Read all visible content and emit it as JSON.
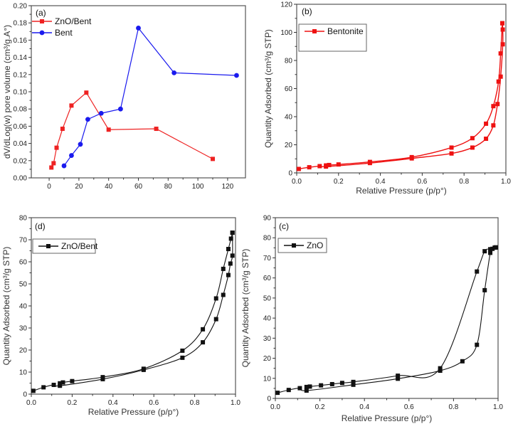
{
  "chart_data": [
    {
      "id": "a",
      "type": "line",
      "panel_label": "(a)",
      "title": "",
      "xlabel": "",
      "ylabel": "dV/dLog(w) pore volume (cm³/g.A°)",
      "xlim": [
        -12,
        132
      ],
      "ylim": [
        0,
        0.2
      ],
      "xticks": [
        0,
        20,
        40,
        60,
        80,
        100,
        120
      ],
      "xtick_labels": [
        "0",
        "20",
        "40",
        "60",
        "80",
        "100",
        "120"
      ],
      "yticks": [
        0,
        0.02,
        0.04,
        0.06,
        0.08,
        0.1,
        0.12,
        0.14,
        0.16,
        0.18,
        0.2
      ],
      "ytick_labels": [
        "0.00",
        "0.02",
        "0.04",
        "0.06",
        "0.08",
        "0.10",
        "0.12",
        "0.14",
        "0.16",
        "0.18",
        "0.20"
      ],
      "grid": false,
      "legend_position": "top-left",
      "series": [
        {
          "name": "ZnO/Bent",
          "color": "#ee2222",
          "marker": "square",
          "x": [
            1.5,
            3,
            5,
            9,
            15,
            25,
            40,
            72,
            110
          ],
          "y": [
            0.012,
            0.017,
            0.035,
            0.057,
            0.084,
            0.099,
            0.056,
            0.057,
            0.022
          ]
        },
        {
          "name": "Bent",
          "color": "#1a1aee",
          "marker": "circle",
          "x": [
            10,
            15,
            21,
            26,
            35,
            48,
            60,
            84,
            126
          ],
          "y": [
            0.014,
            0.026,
            0.039,
            0.068,
            0.075,
            0.08,
            0.174,
            0.122,
            0.119
          ]
        }
      ]
    },
    {
      "id": "b",
      "type": "line",
      "panel_label": "(b)",
      "title": "",
      "xlabel": "Relative Pressure (p/p°)",
      "ylabel": "Quantity Adsorbed (cm³/g STP)",
      "xlim": [
        0,
        1
      ],
      "ylim": [
        0,
        120
      ],
      "xticks": [
        0,
        0.2,
        0.4,
        0.6,
        0.8,
        1.0
      ],
      "xtick_labels": [
        "0.0",
        "0.2",
        "0.4",
        "0.6",
        "0.8",
        "1.0"
      ],
      "yticks": [
        0,
        20,
        40,
        60,
        80,
        100,
        120
      ],
      "ytick_labels": [
        "0",
        "20",
        "40",
        "60",
        "80",
        "100",
        "120"
      ],
      "grid": false,
      "legend_position": "top-left",
      "legend_boxed": true,
      "series": [
        {
          "name": "Bentonite",
          "branch": "adsorption",
          "color": "#ee1111",
          "marker": "square",
          "x": [
            0.01,
            0.06,
            0.11,
            0.14,
            0.35,
            0.55,
            0.74,
            0.84,
            0.905,
            0.94,
            0.96,
            0.975,
            0.985,
            0.985,
            0.983
          ],
          "y": [
            2.8,
            4.0,
            4.8,
            4.5,
            7.0,
            10.3,
            13.8,
            18.0,
            24.3,
            33.8,
            49.0,
            68.5,
            91.5,
            102.0,
            106.5
          ]
        },
        {
          "name": "Bentonite",
          "branch": "desorption",
          "color": "#ee1111",
          "marker": "square",
          "x": [
            0.983,
            0.975,
            0.965,
            0.94,
            0.905,
            0.84,
            0.74,
            0.55,
            0.35,
            0.2,
            0.155,
            0.14
          ],
          "y": [
            106.5,
            85.0,
            65.0,
            47.5,
            35.0,
            24.7,
            18.0,
            11.2,
            7.8,
            6.0,
            5.6,
            5.3
          ]
        }
      ]
    },
    {
      "id": "d",
      "type": "line",
      "panel_label": "(d)",
      "title": "",
      "xlabel": "Relative Pressure (p/p°)",
      "ylabel": "Quantity Adsorbed (cm³/g STP)",
      "xlim": [
        0,
        1
      ],
      "ylim": [
        0,
        80
      ],
      "xticks": [
        0,
        0.2,
        0.4,
        0.6,
        0.8,
        1.0
      ],
      "xtick_labels": [
        "0.0",
        "0.2",
        "0.4",
        "0.6",
        "0.8",
        "1.0"
      ],
      "yticks": [
        0,
        10,
        20,
        30,
        40,
        50,
        60,
        70,
        80
      ],
      "ytick_labels": [
        "0",
        "10",
        "20",
        "30",
        "40",
        "50",
        "60",
        "70",
        "80"
      ],
      "grid": false,
      "legend_position": "top-left",
      "legend_boxed": true,
      "series": [
        {
          "name": "ZnO/Bent",
          "branch": "adsorption",
          "color": "#111111",
          "marker": "square",
          "x": [
            0.01,
            0.06,
            0.11,
            0.14,
            0.35,
            0.55,
            0.74,
            0.84,
            0.905,
            0.94,
            0.965,
            0.975,
            0.985,
            0.985
          ],
          "y": [
            1.5,
            3.1,
            4.2,
            3.8,
            6.8,
            11.0,
            16.5,
            23.5,
            34.0,
            45.0,
            54.0,
            59.2,
            62.8,
            73.2
          ]
        },
        {
          "name": "ZnO/Bent",
          "branch": "desorption",
          "color": "#111111",
          "marker": "square",
          "x": [
            0.985,
            0.978,
            0.965,
            0.94,
            0.905,
            0.84,
            0.74,
            0.55,
            0.35,
            0.2,
            0.155,
            0.14
          ],
          "y": [
            73.2,
            70.5,
            65.8,
            56.8,
            43.4,
            29.4,
            19.7,
            11.5,
            7.7,
            5.9,
            5.3,
            4.9
          ]
        }
      ]
    },
    {
      "id": "c",
      "type": "line",
      "panel_label": "(c)",
      "title": "",
      "xlabel": "Relative Pressure (p/p°)",
      "ylabel": "Quantity Adsorbed (cm³/g STP)",
      "xlim": [
        0,
        1
      ],
      "ylim": [
        0,
        90
      ],
      "xticks": [
        0,
        0.2,
        0.4,
        0.6,
        0.8,
        1.0
      ],
      "xtick_labels": [
        "0.0",
        "0.2",
        "0.4",
        "0.6",
        "0.8",
        "1.0"
      ],
      "yticks": [
        0,
        10,
        20,
        30,
        40,
        50,
        60,
        70,
        80,
        90
      ],
      "ytick_labels": [
        "0",
        "10",
        "20",
        "30",
        "40",
        "50",
        "60",
        "70",
        "80",
        "90"
      ],
      "grid": false,
      "legend_position": "top-left",
      "legend_boxed": true,
      "series": [
        {
          "name": "ZnO",
          "branch": "adsorption",
          "color": "#111111",
          "marker": "square",
          "x": [
            0.01,
            0.06,
            0.11,
            0.14,
            0.35,
            0.55,
            0.74,
            0.84,
            0.905,
            0.94,
            0.965,
            0.975,
            0.985,
            0.99
          ],
          "y": [
            2.8,
            4.2,
            5.1,
            3.9,
            6.8,
            9.8,
            13.8,
            18.5,
            26.7,
            53.9,
            72.5,
            74.5,
            75.1,
            75.2
          ]
        },
        {
          "name": "ZnO",
          "branch": "desorption",
          "color": "#111111",
          "marker": "square",
          "x": [
            0.99,
            0.965,
            0.94,
            0.905,
            0.74,
            0.55,
            0.35,
            0.3,
            0.255,
            0.205,
            0.155,
            0.14
          ],
          "y": [
            75.2,
            74.3,
            73.3,
            63.2,
            15.0,
            11.3,
            8.2,
            7.7,
            7.1,
            6.5,
            5.9,
            5.7
          ]
        }
      ]
    }
  ]
}
